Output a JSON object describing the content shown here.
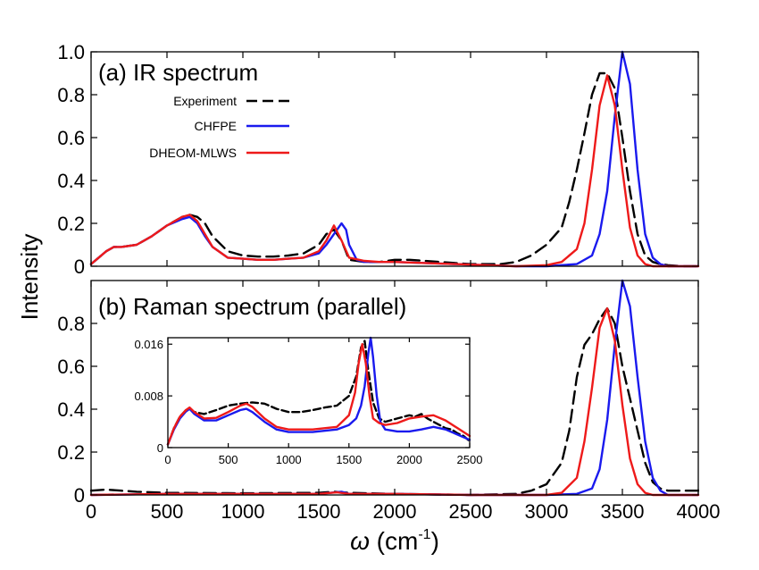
{
  "ylabel": "Intensity",
  "xlabel": {
    "symbol": "ω",
    "unit_open": " (cm",
    "unit_exp": "-1",
    "unit_close": ")"
  },
  "colors": {
    "Experiment": "#000000",
    "CHFPE": "#1a1aee",
    "DHEOM-MLWS": "#ee1a1a"
  },
  "chart_data": [
    {
      "id": "ir",
      "type": "line",
      "title": "(a) IR spectrum",
      "xlim": [
        0,
        4000
      ],
      "ylim": [
        0,
        1.0
      ],
      "xticks": [
        0,
        500,
        1000,
        1500,
        2000,
        2500,
        3000,
        3500,
        4000
      ],
      "yticks": [
        0,
        0.2,
        0.4,
        0.6,
        0.8,
        1.0
      ],
      "ytick_labels": [
        "0",
        "0.2",
        "0.4",
        "0.6",
        "0.8",
        "1.0"
      ],
      "legend": {
        "position": "top-left",
        "entries": [
          "Experiment",
          "CHFPE",
          "DHEOM-MLWS"
        ]
      },
      "series": [
        {
          "name": "Experiment",
          "style": "dashed",
          "x": [
            0,
            50,
            100,
            150,
            200,
            300,
            400,
            500,
            600,
            650,
            700,
            750,
            800,
            900,
            1000,
            1100,
            1200,
            1300,
            1400,
            1500,
            1550,
            1600,
            1650,
            1700,
            1800,
            1900,
            2000,
            2100,
            2200,
            2300,
            2400,
            2500,
            2600,
            2700,
            2800,
            2900,
            3000,
            3100,
            3150,
            3200,
            3250,
            3300,
            3350,
            3400,
            3450,
            3500,
            3550,
            3600,
            3650,
            3700,
            3750,
            3800,
            3900,
            4000
          ],
          "y": [
            0.01,
            0.04,
            0.07,
            0.09,
            0.09,
            0.1,
            0.14,
            0.19,
            0.23,
            0.24,
            0.23,
            0.2,
            0.14,
            0.07,
            0.05,
            0.045,
            0.045,
            0.05,
            0.06,
            0.1,
            0.15,
            0.17,
            0.12,
            0.03,
            0.02,
            0.02,
            0.03,
            0.03,
            0.025,
            0.02,
            0.015,
            0.01,
            0.01,
            0.01,
            0.02,
            0.05,
            0.1,
            0.18,
            0.3,
            0.45,
            0.62,
            0.8,
            0.9,
            0.9,
            0.83,
            0.6,
            0.35,
            0.15,
            0.05,
            0.02,
            0.01,
            0.005,
            0,
            0
          ]
        },
        {
          "name": "CHFPE",
          "style": "solid",
          "x": [
            0,
            50,
            100,
            150,
            200,
            300,
            400,
            500,
            600,
            650,
            700,
            750,
            800,
            900,
            1000,
            1100,
            1200,
            1300,
            1400,
            1500,
            1550,
            1600,
            1650,
            1680,
            1700,
            1750,
            1800,
            1900,
            2000,
            2200,
            2400,
            2600,
            2800,
            3000,
            3200,
            3300,
            3350,
            3400,
            3450,
            3500,
            3550,
            3600,
            3650,
            3700,
            3750,
            3800,
            3900,
            4000
          ],
          "y": [
            0.01,
            0.04,
            0.07,
            0.09,
            0.09,
            0.1,
            0.14,
            0.19,
            0.22,
            0.23,
            0.2,
            0.14,
            0.09,
            0.04,
            0.035,
            0.03,
            0.03,
            0.035,
            0.04,
            0.06,
            0.1,
            0.15,
            0.2,
            0.17,
            0.1,
            0.03,
            0.02,
            0.02,
            0.02,
            0.015,
            0.01,
            0.005,
            0,
            0,
            0.01,
            0.05,
            0.15,
            0.35,
            0.7,
            1.0,
            0.85,
            0.45,
            0.15,
            0.04,
            0.01,
            0,
            0,
            0
          ]
        },
        {
          "name": "DHEOM-MLWS",
          "style": "solid",
          "x": [
            0,
            50,
            100,
            150,
            200,
            300,
            400,
            500,
            600,
            650,
            700,
            750,
            800,
            900,
            1000,
            1100,
            1200,
            1300,
            1400,
            1500,
            1550,
            1600,
            1650,
            1700,
            1800,
            1900,
            2000,
            2200,
            2400,
            2600,
            2800,
            3000,
            3100,
            3200,
            3250,
            3300,
            3350,
            3400,
            3450,
            3500,
            3550,
            3600,
            3650,
            3700,
            3800,
            4000
          ],
          "y": [
            0.01,
            0.04,
            0.07,
            0.09,
            0.09,
            0.1,
            0.14,
            0.19,
            0.23,
            0.24,
            0.21,
            0.15,
            0.09,
            0.04,
            0.035,
            0.03,
            0.03,
            0.035,
            0.04,
            0.07,
            0.12,
            0.19,
            0.12,
            0.04,
            0.025,
            0.02,
            0.02,
            0.015,
            0.01,
            0.005,
            0,
            0.005,
            0.02,
            0.08,
            0.2,
            0.45,
            0.75,
            0.89,
            0.75,
            0.45,
            0.18,
            0.05,
            0.01,
            0,
            0,
            0
          ]
        }
      ]
    },
    {
      "id": "raman",
      "type": "line",
      "title": "(b) Raman spectrum (parallel)",
      "xlim": [
        0,
        4000
      ],
      "ylim": [
        0,
        1.0
      ],
      "xticks": [
        0,
        500,
        1000,
        1500,
        2000,
        2500,
        3000,
        3500,
        4000
      ],
      "yticks": [
        0,
        0.2,
        0.4,
        0.6,
        0.8
      ],
      "ytick_labels": [
        "0",
        "0.2",
        "0.4",
        "0.6",
        "0.8"
      ],
      "series": [
        {
          "name": "Experiment",
          "style": "dashed",
          "x": [
            0,
            100,
            200,
            300,
            500,
            1000,
            1500,
            1600,
            1700,
            2000,
            2500,
            2800,
            2900,
            3000,
            3100,
            3150,
            3200,
            3250,
            3300,
            3350,
            3400,
            3450,
            3500,
            3550,
            3600,
            3650,
            3700,
            3750,
            3800,
            3850,
            4000
          ],
          "y": [
            0.02,
            0.025,
            0.02,
            0.015,
            0.01,
            0.008,
            0.01,
            0.015,
            0.01,
            0.005,
            0,
            0.005,
            0.02,
            0.05,
            0.15,
            0.3,
            0.55,
            0.7,
            0.75,
            0.82,
            0.87,
            0.8,
            0.6,
            0.45,
            0.3,
            0.15,
            0.06,
            0.03,
            0.02,
            0.02,
            0.02
          ]
        },
        {
          "name": "CHFPE",
          "style": "solid",
          "x": [
            0,
            500,
            1500,
            1650,
            1700,
            2000,
            2500,
            3000,
            3200,
            3300,
            3350,
            3400,
            3450,
            3500,
            3550,
            3600,
            3650,
            3700,
            3750,
            3800,
            4000
          ],
          "y": [
            0,
            0.005,
            0.005,
            0.015,
            0.005,
            0.005,
            0,
            0,
            0.005,
            0.03,
            0.12,
            0.35,
            0.7,
            1.0,
            0.88,
            0.55,
            0.25,
            0.08,
            0.02,
            0,
            0
          ]
        },
        {
          "name": "DHEOM-MLWS",
          "style": "solid",
          "x": [
            0,
            500,
            1500,
            1620,
            1700,
            2000,
            2500,
            3000,
            3100,
            3200,
            3250,
            3300,
            3350,
            3400,
            3450,
            3500,
            3550,
            3600,
            3650,
            3700,
            4000
          ],
          "y": [
            0,
            0.005,
            0.005,
            0.012,
            0.005,
            0.005,
            0,
            0,
            0.01,
            0.08,
            0.25,
            0.5,
            0.78,
            0.87,
            0.72,
            0.42,
            0.17,
            0.05,
            0.01,
            0,
            0
          ]
        }
      ]
    },
    {
      "id": "inset",
      "type": "line",
      "xlim": [
        0,
        2500
      ],
      "ylim": [
        0,
        0.017
      ],
      "xticks": [
        0,
        500,
        1000,
        1500,
        2000,
        2500
      ],
      "yticks": [
        0,
        0.008,
        0.016
      ],
      "ytick_labels": [
        "0",
        "0.008",
        "0.016"
      ],
      "series": [
        {
          "name": "Experiment",
          "style": "dashed",
          "x": [
            0,
            50,
            100,
            150,
            180,
            220,
            300,
            400,
            500,
            600,
            700,
            800,
            900,
            1000,
            1100,
            1200,
            1300,
            1400,
            1500,
            1560,
            1600,
            1630,
            1660,
            1700,
            1750,
            1800,
            1900,
            2000,
            2050,
            2100,
            2150,
            2200,
            2250,
            2300,
            2350,
            2400,
            2450,
            2500
          ],
          "y": [
            0.0005,
            0.003,
            0.0048,
            0.0058,
            0.006,
            0.0055,
            0.0052,
            0.0058,
            0.0065,
            0.0068,
            0.007,
            0.0068,
            0.006,
            0.0055,
            0.0055,
            0.0058,
            0.0062,
            0.0065,
            0.008,
            0.011,
            0.0155,
            0.0165,
            0.012,
            0.007,
            0.0045,
            0.004,
            0.0045,
            0.005,
            0.0048,
            0.0052,
            0.0045,
            0.004,
            0.0035,
            0.003,
            0.0028,
            0.0022,
            0.0018,
            0.001
          ]
        },
        {
          "name": "CHFPE",
          "style": "solid",
          "x": [
            0,
            50,
            100,
            150,
            180,
            220,
            300,
            400,
            500,
            600,
            650,
            700,
            800,
            900,
            1000,
            1200,
            1400,
            1500,
            1560,
            1600,
            1630,
            1660,
            1680,
            1700,
            1730,
            1760,
            1800,
            1900,
            2000,
            2100,
            2200,
            2300,
            2400,
            2500
          ],
          "y": [
            0.0005,
            0.0028,
            0.0045,
            0.0056,
            0.006,
            0.0052,
            0.0042,
            0.0042,
            0.005,
            0.0058,
            0.006,
            0.0055,
            0.004,
            0.0028,
            0.0024,
            0.0024,
            0.0028,
            0.0035,
            0.0045,
            0.0065,
            0.0095,
            0.0145,
            0.017,
            0.014,
            0.008,
            0.004,
            0.0028,
            0.0025,
            0.0025,
            0.0028,
            0.0032,
            0.0028,
            0.002,
            0.0012
          ]
        },
        {
          "name": "DHEOM-MLWS",
          "style": "solid",
          "x": [
            0,
            50,
            100,
            150,
            180,
            220,
            300,
            400,
            500,
            600,
            650,
            700,
            800,
            900,
            1000,
            1200,
            1400,
            1500,
            1550,
            1580,
            1610,
            1640,
            1670,
            1700,
            1750,
            1800,
            1900,
            2000,
            2100,
            2200,
            2300,
            2400,
            2500
          ],
          "y": [
            0.0005,
            0.003,
            0.0048,
            0.0058,
            0.0062,
            0.0055,
            0.0045,
            0.0046,
            0.0055,
            0.0065,
            0.0068,
            0.0063,
            0.0045,
            0.0032,
            0.0028,
            0.0028,
            0.0032,
            0.005,
            0.0085,
            0.013,
            0.016,
            0.013,
            0.008,
            0.0045,
            0.0038,
            0.0035,
            0.0038,
            0.0045,
            0.0048,
            0.005,
            0.0042,
            0.003,
            0.0018
          ]
        }
      ]
    }
  ]
}
